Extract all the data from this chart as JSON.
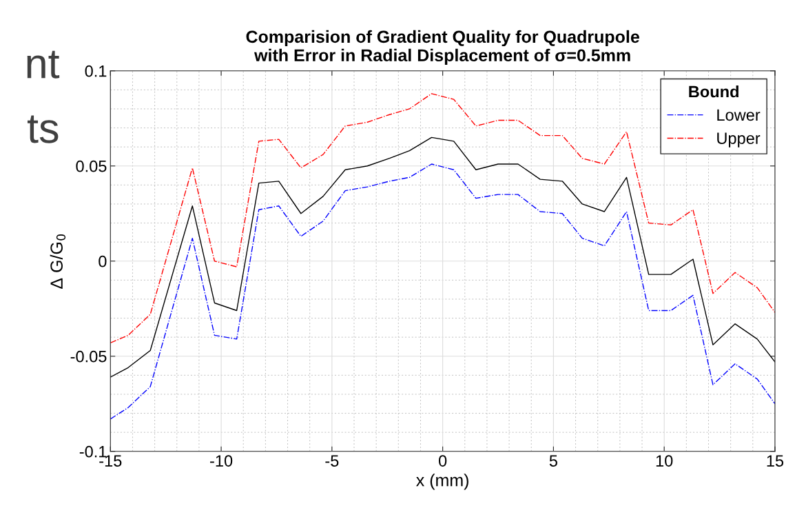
{
  "chart_data": {
    "type": "line",
    "title": "Comparision of Gradient Quality for Quadrupole\nwith Error in Radial Displacement of σ=0.5mm",
    "xlabel": "x (mm)",
    "ylabel": "Δ G/G$_{0}$",
    "x": [
      -15,
      -14.2,
      -13.2,
      -11.3,
      -10.3,
      -9.3,
      -8.3,
      -7.4,
      -6.4,
      -5.4,
      -4.4,
      -3.4,
      -2.4,
      -1.5,
      -0.5,
      0.5,
      1.5,
      2.5,
      3.4,
      4.4,
      5.4,
      6.3,
      7.3,
      8.3,
      9.3,
      10.3,
      11.3,
      12.2,
      13.2,
      14.2,
      15
    ],
    "series": [
      {
        "color": "#000000",
        "line_style": "solid",
        "values": [
          -0.061,
          -0.056,
          -0.047,
          0.029,
          -0.022,
          -0.026,
          0.041,
          0.042,
          0.025,
          0.034,
          0.048,
          0.05,
          0.054,
          0.058,
          0.065,
          0.063,
          0.048,
          0.051,
          0.051,
          0.043,
          0.042,
          0.03,
          0.026,
          0.044,
          -0.007,
          -0.007,
          0.001,
          -0.044,
          -0.033,
          -0.041,
          -0.053
        ]
      },
      {
        "name": "Lower",
        "color": "#0000ff",
        "line_style": "dashdot",
        "values": [
          -0.083,
          -0.077,
          -0.066,
          0.012,
          -0.039,
          -0.041,
          0.027,
          0.029,
          0.013,
          0.021,
          0.037,
          0.039,
          0.042,
          0.044,
          0.051,
          0.048,
          0.033,
          0.035,
          0.035,
          0.026,
          0.025,
          0.012,
          0.008,
          0.026,
          -0.026,
          -0.026,
          -0.018,
          -0.065,
          -0.054,
          -0.062,
          -0.075
        ]
      },
      {
        "name": "Upper",
        "color": "#ff0000",
        "line_style": "dashdot",
        "values": [
          -0.043,
          -0.039,
          -0.028,
          0.049,
          0.0,
          -0.003,
          0.063,
          0.064,
          0.049,
          0.056,
          0.071,
          0.073,
          0.077,
          0.08,
          0.088,
          0.085,
          0.071,
          0.074,
          0.074,
          0.066,
          0.066,
          0.054,
          0.051,
          0.068,
          0.02,
          0.019,
          0.027,
          -0.017,
          -0.006,
          -0.014,
          -0.027
        ]
      }
    ],
    "legend_title": "Bound",
    "legend": "top right",
    "xlim": [
      -15,
      15
    ],
    "xticks": [
      -15,
      -10,
      -5,
      0,
      5,
      10,
      15
    ],
    "ylim": [
      -0.1,
      0.1
    ],
    "yticks": [
      {
        "value": -0.1,
        "label": "-0.1"
      },
      {
        "value": -0.05,
        "label": "-0.05"
      },
      0,
      0.05,
      0.1
    ],
    "grid": true,
    "annotations": [
      "nt",
      "ts"
    ]
  }
}
